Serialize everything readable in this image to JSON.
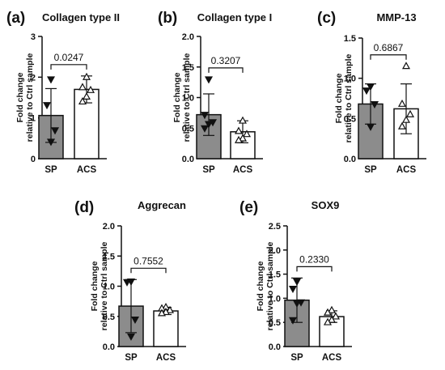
{
  "chart_data": [
    {
      "panel": "(a)",
      "title": "Collagen type II",
      "type": "bar",
      "ylabel": [
        "Fold change",
        "relative to Ctrl sample"
      ],
      "ylim": [
        0,
        3
      ],
      "yticks": [
        "0",
        "1",
        "2",
        "3"
      ],
      "categories": [
        "SP",
        "ACS"
      ],
      "values": [
        1.06,
        1.7
      ],
      "sd": [
        0.66,
        0.33
      ],
      "marker": [
        "tri-down",
        "tri-up"
      ],
      "points": [
        [
          1.95,
          1.32,
          0.7,
          0.42
        ],
        [
          2.0,
          1.75,
          1.68,
          1.52,
          1.4
        ]
      ],
      "p_value": "0.0247",
      "fill": [
        "#8c8c8c",
        "#ffffff"
      ]
    },
    {
      "panel": "(b)",
      "title": "Collagen type I",
      "type": "bar",
      "ylabel": [
        "Fold change",
        "relative to Ctrl sample"
      ],
      "ylim": [
        0,
        2
      ],
      "yticks": [
        "0.0",
        "0.5",
        "1.0",
        "1.5",
        "2.0"
      ],
      "categories": [
        "SP",
        "ACS"
      ],
      "values": [
        0.72,
        0.44
      ],
      "sd": [
        0.34,
        0.18
      ],
      "marker": [
        "tri-down",
        "tri-up"
      ],
      "points": [
        [
          1.3,
          0.72,
          0.6,
          0.57,
          0.5
        ],
        [
          0.62,
          0.45,
          0.4,
          0.33,
          0.3
        ]
      ],
      "p_value": "0.3207",
      "fill": [
        "#8c8c8c",
        "#ffffff"
      ]
    },
    {
      "panel": "(c)",
      "title": "MMP-13",
      "type": "bar",
      "ylabel": [
        "Fold change",
        "relative to Ctrl sample"
      ],
      "ylim": [
        0,
        1.5
      ],
      "yticks": [
        "0.0",
        "0.5",
        "1.0",
        "1.5"
      ],
      "categories": [
        "SP",
        "ACS"
      ],
      "values": [
        0.68,
        0.62
      ],
      "sd": [
        0.25,
        0.31
      ],
      "marker": [
        "tri-down",
        "tri-up"
      ],
      "points": [
        [
          0.9,
          0.85,
          0.68,
          0.4
        ],
        [
          1.15,
          0.68,
          0.55,
          0.48,
          0.4
        ]
      ],
      "p_value": "0.6867",
      "fill": [
        "#8c8c8c",
        "#ffffff"
      ]
    },
    {
      "panel": "(d)",
      "title": "Aggrecan",
      "type": "bar",
      "ylabel": [
        "Fold change",
        "relative to Ctrl sample"
      ],
      "ylim": [
        0,
        2
      ],
      "yticks": [
        "0.0",
        "0.5",
        "1.0",
        "1.5",
        "2.0"
      ],
      "categories": [
        "SP",
        "ACS"
      ],
      "values": [
        0.67,
        0.59
      ],
      "sd": [
        0.44,
        0.06
      ],
      "marker": [
        "tri-down",
        "tri-up"
      ],
      "points": [
        [
          1.08,
          1.07,
          0.45,
          0.17
        ],
        [
          0.65,
          0.63,
          0.6,
          0.57,
          0.55
        ]
      ],
      "p_value": "0.7552",
      "fill": [
        "#8c8c8c",
        "#ffffff"
      ]
    },
    {
      "panel": "(e)",
      "title": "SOX9",
      "type": "bar",
      "ylabel": [
        "Fold change",
        "relative to Ctrl sample"
      ],
      "ylim": [
        0,
        2.5
      ],
      "yticks": [
        "0.0",
        "0.5",
        "1.0",
        "1.5",
        "2.0",
        "2.5"
      ],
      "categories": [
        "SP",
        "ACS"
      ],
      "values": [
        0.96,
        0.62
      ],
      "sd": [
        0.46,
        0.12
      ],
      "marker": [
        "tri-down",
        "tri-up"
      ],
      "points": [
        [
          1.35,
          1.2,
          0.92,
          0.9,
          0.55
        ],
        [
          0.75,
          0.7,
          0.62,
          0.55,
          0.5
        ]
      ],
      "p_value": "0.2330",
      "fill": [
        "#8c8c8c",
        "#ffffff"
      ]
    }
  ]
}
